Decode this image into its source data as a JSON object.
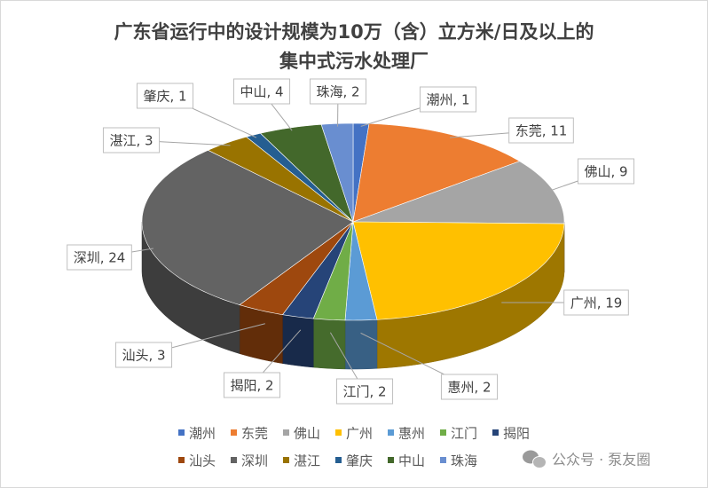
{
  "chart_data": {
    "type": "pie3d",
    "title": [
      "广东省运行中的设计规模为10万（含）立方米/日及以上的",
      "集中式污水处理厂"
    ],
    "categories": [
      "潮州",
      "东莞",
      "佛山",
      "广州",
      "惠州",
      "江门",
      "揭阳",
      "汕头",
      "深圳",
      "湛江",
      "肇庆",
      "中山",
      "珠海"
    ],
    "values": [
      1,
      11,
      9,
      19,
      2,
      2,
      2,
      3,
      24,
      3,
      1,
      4,
      2
    ],
    "value_labels": [
      "潮州, 1",
      "东莞, 11",
      "佛山, 9",
      "广州, 19",
      "惠州, 2",
      "江门, 2",
      "揭阳, 2",
      "汕头, 3",
      "深圳, 24",
      "湛江, 3",
      "肇庆, 1",
      "中山, 4",
      "珠海, 2"
    ],
    "colors": [
      "#4472c4",
      "#ed7d31",
      "#a5a5a5",
      "#ffc000",
      "#5b9bd5",
      "#70ad47",
      "#264478",
      "#9e480e",
      "#636363",
      "#997300",
      "#255e91",
      "#43682b",
      "#698ed0"
    ],
    "legend": "bottom"
  },
  "watermark": "公众号 · 泵友圈"
}
